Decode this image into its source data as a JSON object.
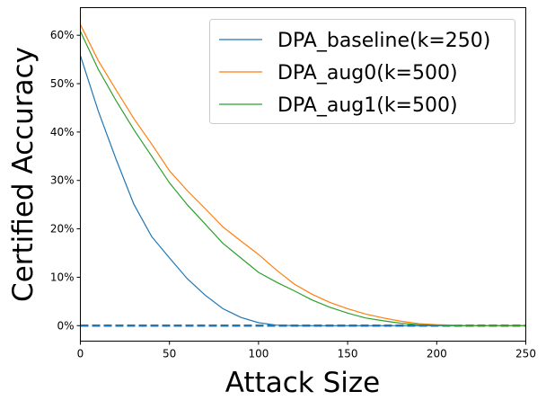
{
  "chart_data": {
    "type": "line",
    "title": "",
    "xlabel": "Attack Size",
    "ylabel": "Certified Accuracy",
    "xlim": [
      0,
      250
    ],
    "ylim": [
      -3.2,
      65.7
    ],
    "xticks": [
      0,
      50,
      100,
      150,
      200,
      250
    ],
    "yticks": [
      0,
      10,
      20,
      30,
      40,
      50,
      60
    ],
    "ytick_labels": [
      "0%",
      "10%",
      "20%",
      "30%",
      "40%",
      "50%",
      "60%"
    ],
    "grid": false,
    "legend_position": "top-right",
    "x": [
      0,
      10,
      20,
      30,
      40,
      50,
      60,
      70,
      80,
      90,
      100,
      110,
      120,
      130,
      140,
      150,
      160,
      170,
      180,
      190,
      200,
      210,
      220,
      230,
      240,
      250
    ],
    "series": [
      {
        "name": "DPA_baseline(k=250)",
        "color": "#1f77b4",
        "values": [
          55.8,
          44.4,
          34.4,
          25.1,
          18.4,
          14.0,
          9.7,
          6.3,
          3.5,
          1.7,
          0.6,
          0.1,
          0,
          0,
          0,
          0,
          0,
          0,
          0,
          0,
          0,
          0,
          0,
          0,
          0,
          0
        ]
      },
      {
        "name": "DPA_aug0(k=500)",
        "color": "#ff7f0e",
        "values": [
          62.2,
          54.8,
          48.7,
          42.8,
          37.5,
          32.0,
          27.9,
          24.2,
          20.4,
          17.5,
          14.7,
          11.5,
          8.6,
          6.5,
          4.8,
          3.5,
          2.4,
          1.6,
          0.9,
          0.4,
          0.2,
          0.1,
          0,
          0,
          0,
          0
        ]
      },
      {
        "name": "DPA_aug1(k=500)",
        "color": "#2ca02c",
        "values": [
          60.8,
          53.0,
          46.5,
          40.5,
          35.0,
          29.5,
          25.0,
          21.0,
          17.0,
          14.0,
          11.0,
          9.0,
          7.2,
          5.3,
          3.8,
          2.6,
          1.6,
          1.0,
          0.5,
          0.2,
          0.1,
          0,
          0,
          0,
          0,
          0
        ]
      }
    ],
    "reference_line": {
      "y": 0,
      "style": "dashed",
      "color": "#1f77b4"
    }
  }
}
